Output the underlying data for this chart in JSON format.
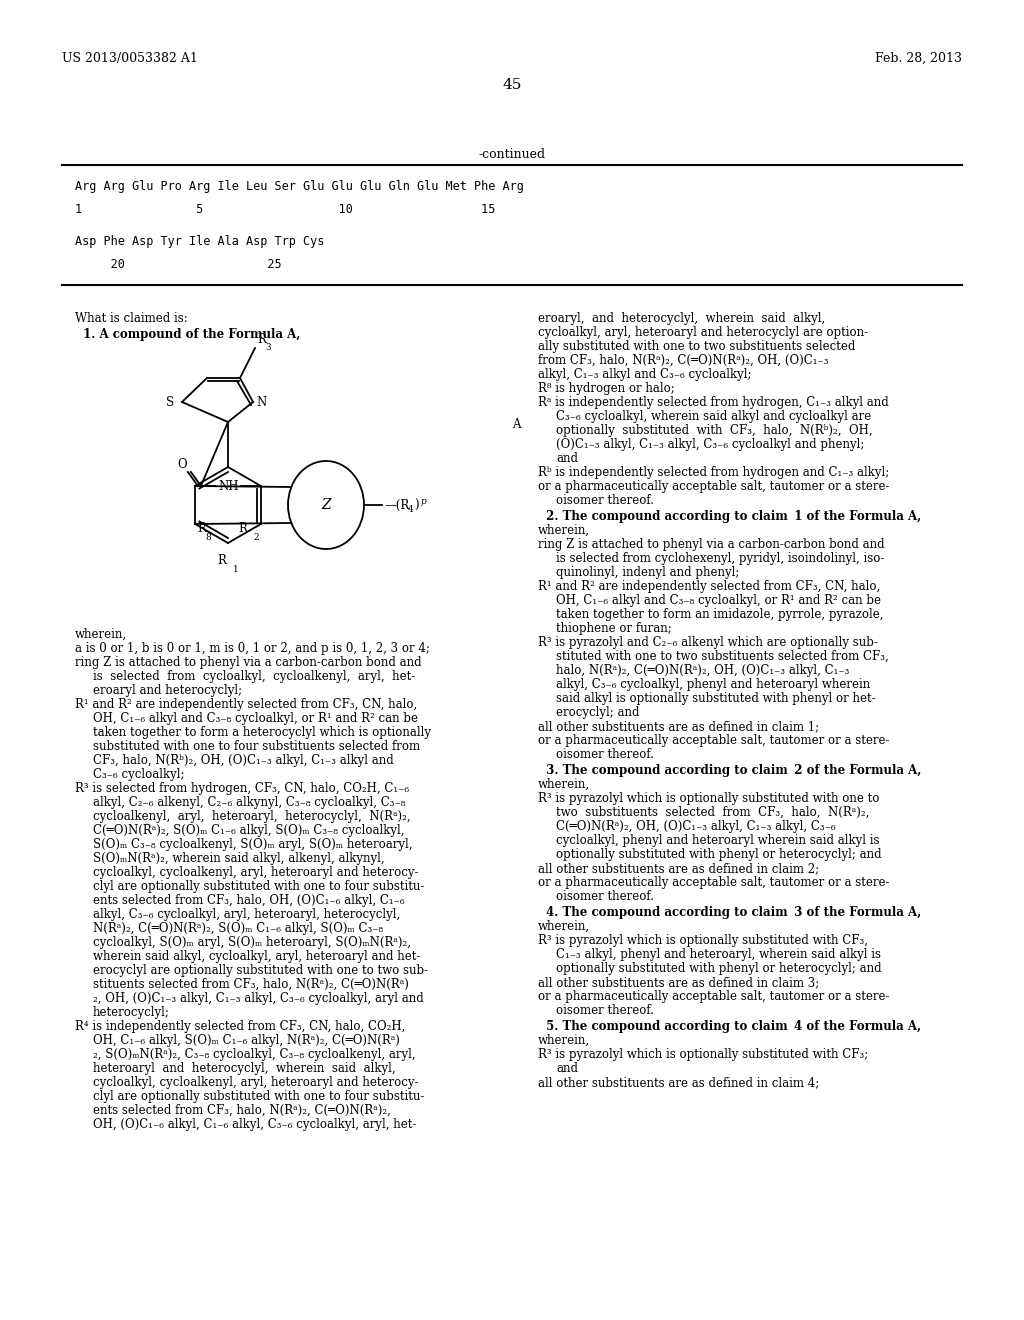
{
  "page_number": "45",
  "patent_number": "US 2013/0053382 A1",
  "patent_date": "Feb. 28, 2013",
  "continued_label": "-continued",
  "background_color": "#ffffff",
  "text_color": "#000000",
  "line1_seq": "Arg Arg Glu Pro Arg Ile Leu Ser Glu Glu Glu Gln Glu Met Phe Arg",
  "line1_nums": "1                5                   10                  15",
  "line2_seq": "Asp Phe Asp Tyr Ile Ala Asp Trp Cys",
  "line2_nums": "     20                    25",
  "what_is_claimed": "What is claimed is:",
  "claim1_title": "1. A compound of the Formula A,",
  "formula_label": "A",
  "wherein_text": "wherein,"
}
